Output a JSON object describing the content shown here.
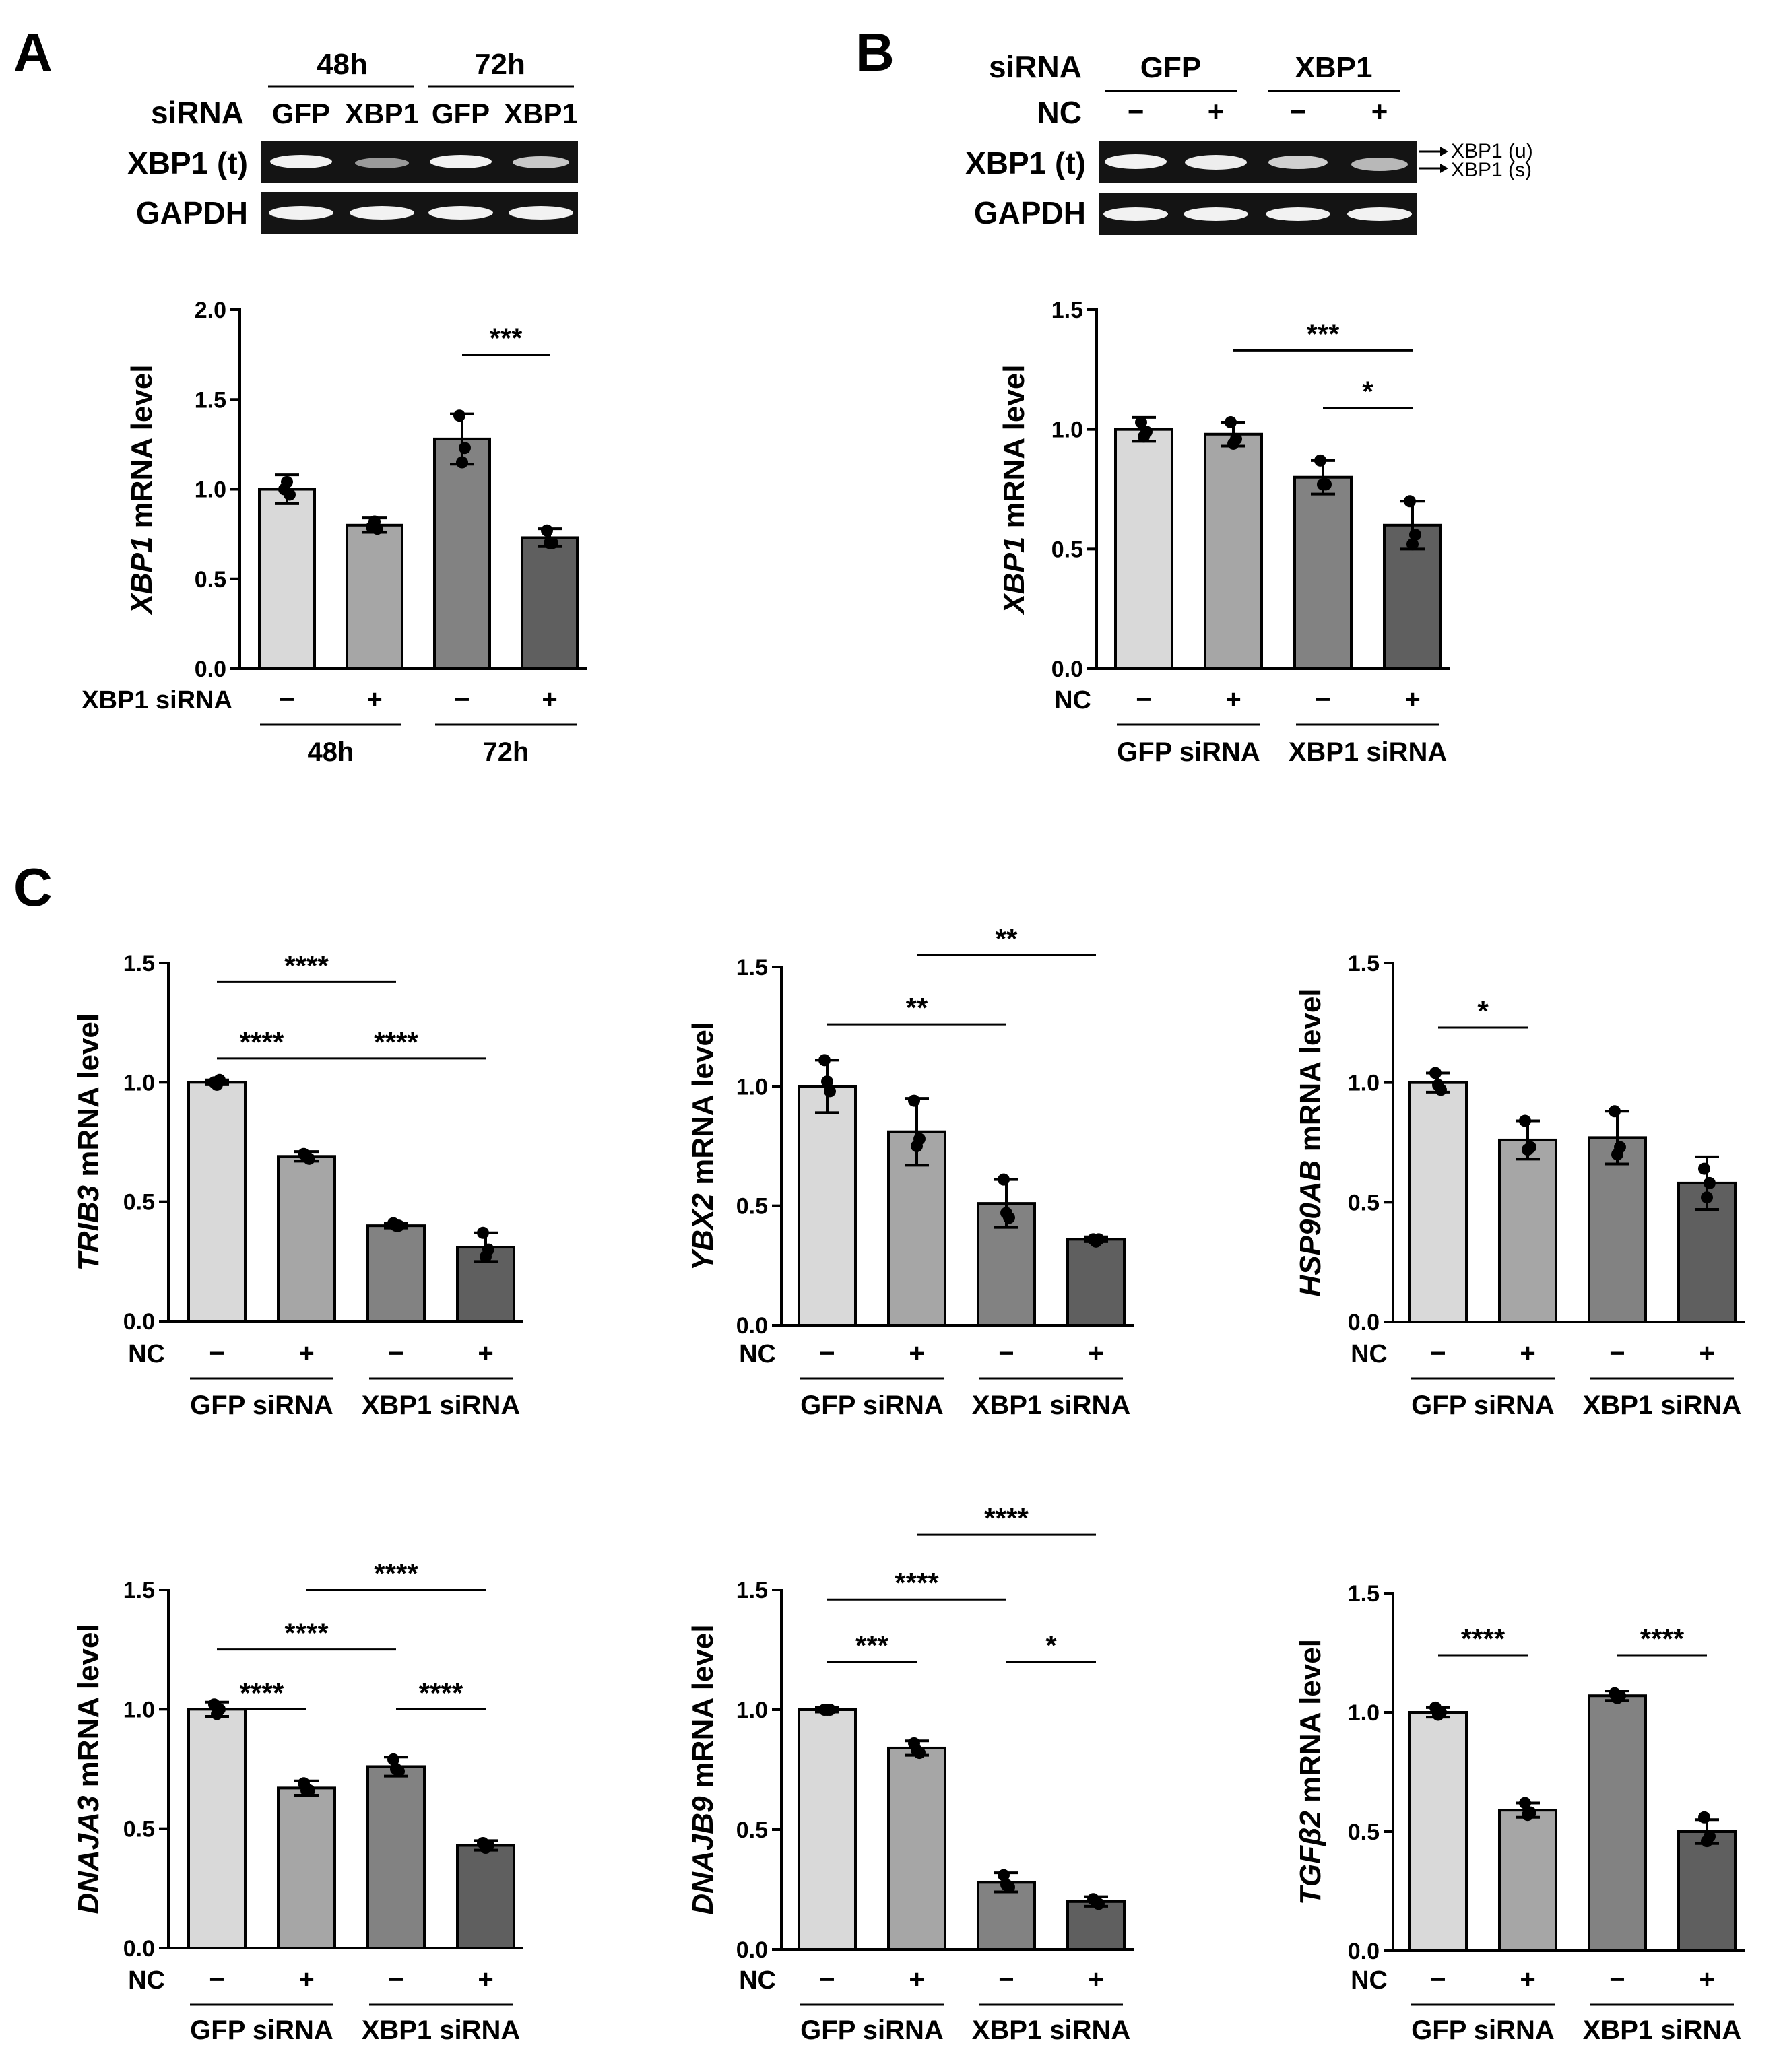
{
  "panel_labels": {
    "A": "A",
    "B": "B",
    "C": "C"
  },
  "colors": {
    "bar1": "#d9d9d9",
    "bar2": "#a6a6a6",
    "bar3": "#828282",
    "bar4": "#5f5f5f",
    "gel_bg": "#141414",
    "band": "#f2f2f2"
  },
  "blot_a": {
    "time_labels": [
      "48h",
      "72h"
    ],
    "row_label_sirna": "siRNA",
    "lane_labels": [
      "GFP",
      "XBP1",
      "GFP",
      "XBP1"
    ],
    "gel_labels": [
      "XBP1 (t)",
      "GAPDH"
    ]
  },
  "blot_b": {
    "row_label_sirna": "siRNA",
    "group_labels": [
      "GFP",
      "XBP1"
    ],
    "row_label_nc": "NC",
    "nc_marks": [
      "−",
      "+",
      "−",
      "+"
    ],
    "gel_labels": [
      "XBP1 (t)",
      "GAPDH"
    ],
    "band_labels": [
      "XBP1 (u)",
      "XBP1 (s)"
    ]
  },
  "chart_data": [
    {
      "id": "A",
      "type": "bar",
      "title": "",
      "ylabel_italic": "XBP1",
      "ylabel_rest": " mRNA level",
      "ylim": [
        0,
        2.0
      ],
      "yticks": [
        "0.0",
        "0.5",
        "1.0",
        "1.5",
        "2.0"
      ],
      "values": [
        1.0,
        0.8,
        1.28,
        0.73
      ],
      "errors": [
        0.08,
        0.04,
        0.14,
        0.05
      ],
      "points": [
        [
          1.0,
          0.97,
          1.04
        ],
        [
          0.79,
          0.78,
          0.82
        ],
        [
          1.41,
          1.23,
          1.15
        ],
        [
          0.77,
          0.7,
          0.7
        ]
      ],
      "row_label": "XBP1 siRNA",
      "row_marks": [
        "−",
        "+",
        "−",
        "+"
      ],
      "groups": [
        "48h",
        "72h"
      ],
      "significance": [
        {
          "from": 2,
          "to": 3,
          "label": "***",
          "y": 1.75
        }
      ]
    },
    {
      "id": "B",
      "type": "bar",
      "title": "",
      "ylabel_italic": "XBP1",
      "ylabel_rest": " mRNA level",
      "ylim": [
        0,
        1.5
      ],
      "yticks": [
        "0.0",
        "0.5",
        "1.0",
        "1.5"
      ],
      "values": [
        1.0,
        0.98,
        0.8,
        0.6
      ],
      "errors": [
        0.05,
        0.05,
        0.07,
        0.1
      ],
      "points": [
        [
          1.03,
          0.99,
          0.97
        ],
        [
          1.03,
          0.96,
          0.94
        ],
        [
          0.87,
          0.77,
          0.77
        ],
        [
          0.7,
          0.56,
          0.52
        ]
      ],
      "row_label": "NC",
      "row_marks": [
        "−",
        "+",
        "−",
        "+"
      ],
      "groups": [
        "GFP siRNA",
        "XBP1 siRNA"
      ],
      "significance": [
        {
          "from": 1,
          "to": 3,
          "label": "***",
          "y": 1.33
        },
        {
          "from": 2,
          "to": 3,
          "label": "*",
          "y": 1.09
        }
      ]
    },
    {
      "id": "C1",
      "type": "bar",
      "title": "",
      "ylabel_italic": "TRIB3",
      "ylabel_rest": " mRNA level",
      "ylim": [
        0,
        1.5
      ],
      "yticks": [
        "0.0",
        "0.5",
        "1.0",
        "1.5"
      ],
      "values": [
        1.0,
        0.69,
        0.4,
        0.31
      ],
      "errors": [
        0.01,
        0.02,
        0.01,
        0.06
      ],
      "points": [
        [
          1.0,
          1.01,
          0.99
        ],
        [
          0.7,
          0.68,
          0.69
        ],
        [
          0.41,
          0.4,
          0.4
        ],
        [
          0.37,
          0.3,
          0.27
        ]
      ],
      "row_label": "NC",
      "row_marks": [
        "−",
        "+",
        "−",
        "+"
      ],
      "groups": [
        "GFP siRNA",
        "XBP1 siRNA"
      ],
      "significance": [
        {
          "from": 0,
          "to": 2,
          "label": "****",
          "y": 1.42
        },
        {
          "from": 0,
          "to": 1,
          "label": "****",
          "y": 1.1
        },
        {
          "from": 1,
          "to": 3,
          "label": "****",
          "y": 1.1
        }
      ]
    },
    {
      "id": "C2",
      "type": "bar",
      "title": "",
      "ylabel_italic": "YBX2",
      "ylabel_rest": " mRNA level",
      "ylim": [
        0,
        1.5
      ],
      "yticks": [
        "0.0",
        "0.5",
        "1.0",
        "1.5"
      ],
      "values": [
        1.0,
        0.81,
        0.51,
        0.36
      ],
      "errors": [
        0.11,
        0.14,
        0.1,
        0.01
      ],
      "points": [
        [
          1.11,
          0.98,
          1.02
        ],
        [
          0.94,
          0.78,
          0.75
        ],
        [
          0.61,
          0.45,
          0.47
        ],
        [
          0.36,
          0.36,
          0.35
        ]
      ],
      "row_label": "NC",
      "row_marks": [
        "−",
        "+",
        "−",
        "+"
      ],
      "groups": [
        "GFP siRNA",
        "XBP1 siRNA"
      ],
      "significance": [
        {
          "from": 1,
          "to": 3,
          "label": "**",
          "y": 1.55
        },
        {
          "from": 0,
          "to": 2,
          "label": "**",
          "y": 1.26
        }
      ]
    },
    {
      "id": "C3",
      "type": "bar",
      "title": "",
      "ylabel_italic": "HSP90AB",
      "ylabel_rest": " mRNA level",
      "ylim": [
        0,
        1.5
      ],
      "yticks": [
        "0.0",
        "0.5",
        "1.0",
        "1.5"
      ],
      "values": [
        1.0,
        0.76,
        0.77,
        0.58
      ],
      "errors": [
        0.04,
        0.08,
        0.11,
        0.11
      ],
      "points": [
        [
          1.04,
          0.97,
          0.99
        ],
        [
          0.84,
          0.73,
          0.72
        ],
        [
          0.88,
          0.73,
          0.7
        ],
        [
          0.64,
          0.58,
          0.52
        ]
      ],
      "row_label": "NC",
      "row_marks": [
        "−",
        "+",
        "−",
        "+"
      ],
      "groups": [
        "GFP siRNA",
        "XBP1 siRNA"
      ],
      "significance": [
        {
          "from": 0,
          "to": 1,
          "label": "*",
          "y": 1.23
        }
      ]
    },
    {
      "id": "C4",
      "type": "bar",
      "title": "",
      "ylabel_italic": "DNAJA3",
      "ylabel_rest": " mRNA level",
      "ylim": [
        0,
        1.5
      ],
      "yticks": [
        "0.0",
        "0.5",
        "1.0",
        "1.5"
      ],
      "values": [
        1.0,
        0.67,
        0.76,
        0.43
      ],
      "errors": [
        0.03,
        0.03,
        0.04,
        0.02
      ],
      "points": [
        [
          1.02,
          1.0,
          0.98
        ],
        [
          0.69,
          0.66,
          0.66
        ],
        [
          0.79,
          0.74,
          0.75
        ],
        [
          0.44,
          0.43,
          0.42
        ]
      ],
      "row_label": "NC",
      "row_marks": [
        "−",
        "+",
        "−",
        "+"
      ],
      "groups": [
        "GFP siRNA",
        "XBP1 siRNA"
      ],
      "significance": [
        {
          "from": 1,
          "to": 3,
          "label": "****",
          "y": 1.5
        },
        {
          "from": 0,
          "to": 2,
          "label": "****",
          "y": 1.25
        },
        {
          "from": 0,
          "to": 1,
          "label": "****",
          "y": 1.0
        },
        {
          "from": 2,
          "to": 3,
          "label": "****",
          "y": 1.0
        }
      ]
    },
    {
      "id": "C5",
      "type": "bar",
      "title": "",
      "ylabel_italic": "DNAJB9",
      "ylabel_rest": " mRNA level",
      "ylim": [
        0,
        1.5
      ],
      "yticks": [
        "0.0",
        "0.5",
        "1.0",
        "1.5"
      ],
      "values": [
        1.0,
        0.84,
        0.28,
        0.2
      ],
      "errors": [
        0.01,
        0.03,
        0.04,
        0.02
      ],
      "points": [
        [
          1.0,
          1.0,
          1.0
        ],
        [
          0.86,
          0.82,
          0.83
        ],
        [
          0.31,
          0.26,
          0.27
        ],
        [
          0.21,
          0.19,
          0.2
        ]
      ],
      "row_label": "NC",
      "row_marks": [
        "−",
        "+",
        "−",
        "+"
      ],
      "groups": [
        "GFP siRNA",
        "XBP1 siRNA"
      ],
      "significance": [
        {
          "from": 1,
          "to": 3,
          "label": "****",
          "y": 1.73
        },
        {
          "from": 0,
          "to": 2,
          "label": "****",
          "y": 1.46
        },
        {
          "from": 0,
          "to": 1,
          "label": "***",
          "y": 1.2
        },
        {
          "from": 2,
          "to": 3,
          "label": "*",
          "y": 1.2
        }
      ]
    },
    {
      "id": "C6",
      "type": "bar",
      "title": "",
      "ylabel_italic": "TGFβ2",
      "ylabel_rest": " mRNA level",
      "ylim": [
        0,
        1.5
      ],
      "yticks": [
        "0.0",
        "0.5",
        "1.0",
        "1.5"
      ],
      "values": [
        1.0,
        0.59,
        1.07,
        0.5
      ],
      "errors": [
        0.02,
        0.03,
        0.02,
        0.05
      ],
      "points": [
        [
          1.02,
          1.0,
          0.99
        ],
        [
          0.62,
          0.58,
          0.57
        ],
        [
          1.08,
          1.07,
          1.06
        ],
        [
          0.56,
          0.48,
          0.46
        ]
      ],
      "row_label": "NC",
      "row_marks": [
        "−",
        "+",
        "−",
        "+"
      ],
      "groups": [
        "GFP siRNA",
        "XBP1 siRNA"
      ],
      "significance": [
        {
          "from": 0,
          "to": 1,
          "label": "****",
          "y": 1.24
        },
        {
          "from": 2,
          "to": 3,
          "label": "****",
          "y": 1.24
        }
      ]
    }
  ]
}
